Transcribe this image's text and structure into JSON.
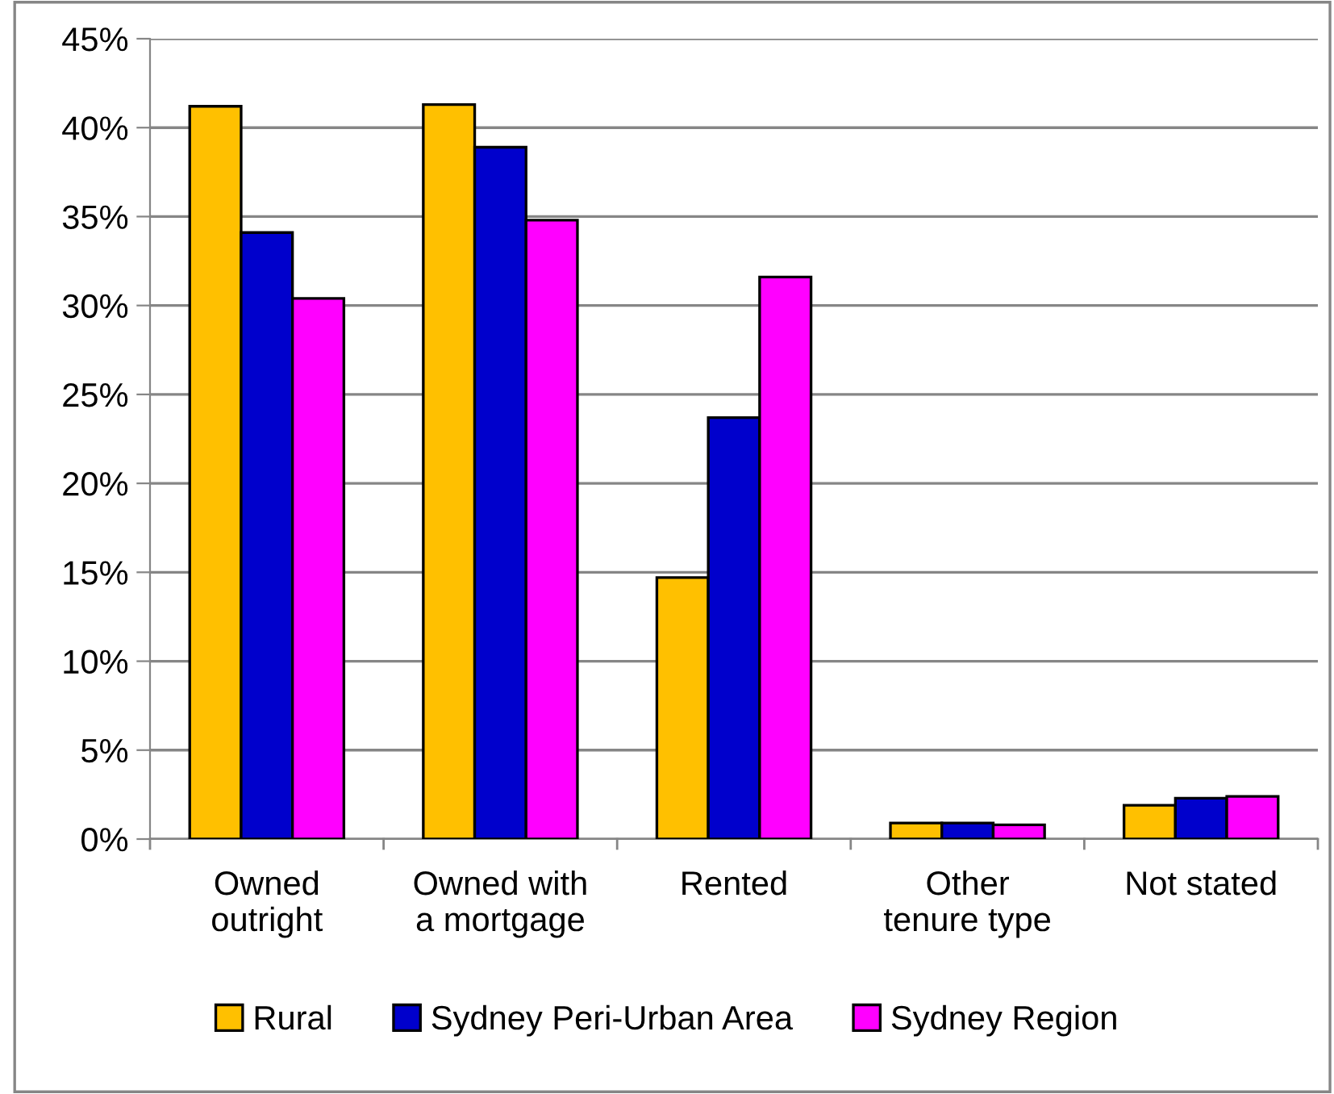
{
  "chart_data": {
    "type": "bar",
    "categories": [
      "Owned\noutright",
      "Owned with\na mortgage",
      "Rented",
      "Other\ntenure type",
      "Not stated"
    ],
    "series": [
      {
        "name": "Rural",
        "color": "#ffc000",
        "values": [
          41.2,
          41.3,
          14.7,
          0.9,
          1.9
        ]
      },
      {
        "name": "Sydney Peri-Urban Area",
        "color": "#0000cc",
        "values": [
          34.1,
          38.9,
          23.7,
          0.9,
          2.3
        ]
      },
      {
        "name": "Sydney Region",
        "color": "#ff00ff",
        "values": [
          30.4,
          34.8,
          31.6,
          0.8,
          2.4
        ]
      }
    ],
    "ylim": [
      0,
      45
    ],
    "yticks": [
      {
        "value": 0,
        "label": "0%"
      },
      {
        "value": 5,
        "label": "5%"
      },
      {
        "value": 10,
        "label": "10%"
      },
      {
        "value": 15,
        "label": "15%"
      },
      {
        "value": 20,
        "label": "20%"
      },
      {
        "value": 25,
        "label": "25%"
      },
      {
        "value": 30,
        "label": "30%"
      },
      {
        "value": 35,
        "label": "35%"
      },
      {
        "value": 40,
        "label": "40%"
      },
      {
        "value": 45,
        "label": "45%"
      }
    ],
    "grid": "y",
    "legend": "bottom"
  }
}
